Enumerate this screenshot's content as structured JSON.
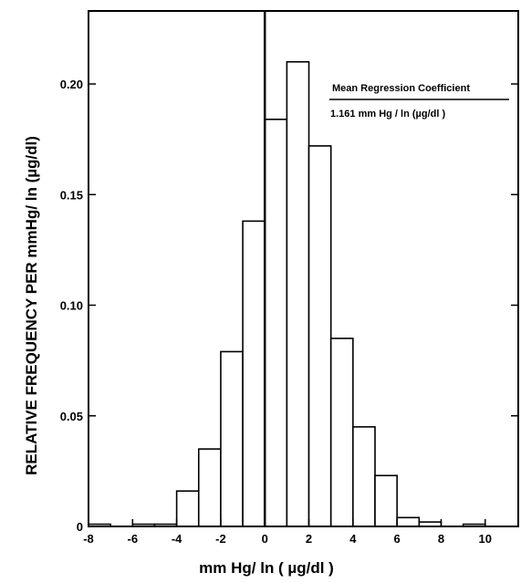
{
  "chart_data": {
    "type": "bar",
    "title": "",
    "xlabel": "mm Hg/ ln ( µg/dl )",
    "ylabel": "RELATIVE FREQUENCY PER mmHg/ ln (µg/dl)",
    "xlim": [
      -8,
      11.5
    ],
    "ylim": [
      0,
      0.233
    ],
    "x_ticks": [
      "-8",
      "-6",
      "-4",
      "-2",
      "0",
      "2",
      "4",
      "6",
      "8",
      "10"
    ],
    "x_tick_values": [
      -8,
      -6,
      -4,
      -2,
      0,
      2,
      4,
      6,
      8,
      10
    ],
    "y_ticks": [
      "0",
      "0.05",
      "0.10",
      "0.15",
      "0.20"
    ],
    "y_tick_values": [
      0,
      0.05,
      0.1,
      0.15,
      0.2
    ],
    "grid": false,
    "bin_width": 1,
    "bins": [
      {
        "x0": -8,
        "x1": -7,
        "value": 0.001
      },
      {
        "x0": -6,
        "x1": -5,
        "value": 0.001
      },
      {
        "x0": -5,
        "x1": -4,
        "value": 0.001
      },
      {
        "x0": -4,
        "x1": -3,
        "value": 0.016
      },
      {
        "x0": -3,
        "x1": -2,
        "value": 0.035
      },
      {
        "x0": -2,
        "x1": -1,
        "value": 0.079
      },
      {
        "x0": -1,
        "x1": 0,
        "value": 0.138
      },
      {
        "x0": 0,
        "x1": 1,
        "value": 0.184
      },
      {
        "x0": 1,
        "x1": 2,
        "value": 0.21
      },
      {
        "x0": 2,
        "x1": 3,
        "value": 0.172
      },
      {
        "x0": 3,
        "x1": 4,
        "value": 0.085
      },
      {
        "x0": 4,
        "x1": 5,
        "value": 0.045
      },
      {
        "x0": 5,
        "x1": 6,
        "value": 0.023
      },
      {
        "x0": 6,
        "x1": 7,
        "value": 0.004
      },
      {
        "x0": 7,
        "x1": 8,
        "value": 0.002
      },
      {
        "x0": 9,
        "x1": 10,
        "value": 0.001
      }
    ],
    "reference_line_x": 0,
    "annotation": {
      "title": "Mean Regression Coefficient",
      "value": "1.161 mm Hg / ln (µg/dl )"
    }
  }
}
